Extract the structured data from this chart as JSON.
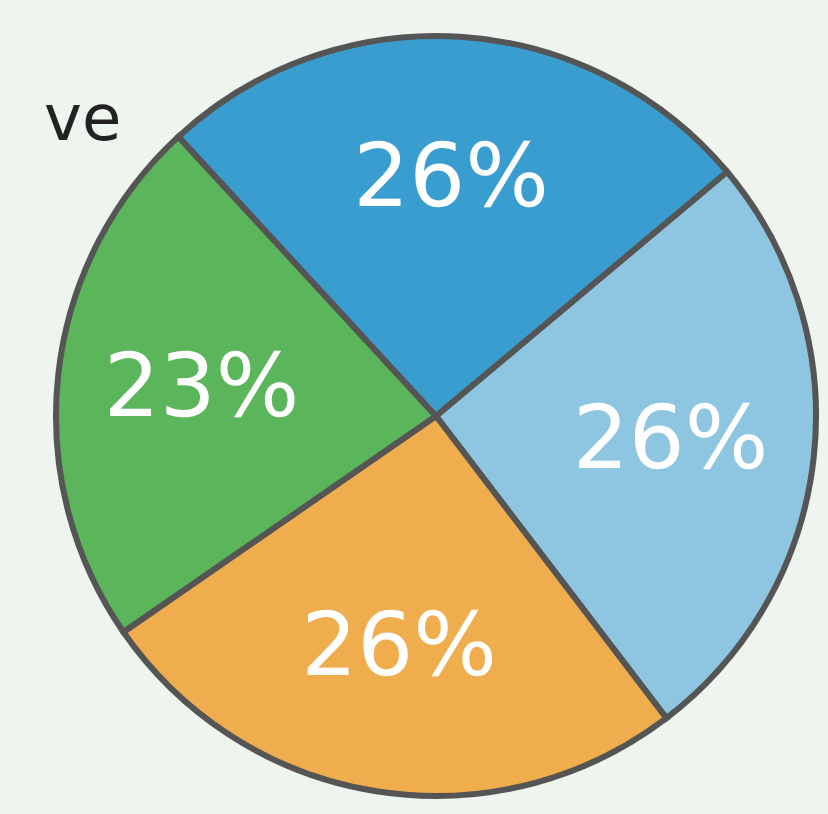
{
  "chart_data": {
    "type": "pie",
    "categories": [
      null,
      null,
      null,
      null
    ],
    "values": [
      26,
      26,
      23,
      26
    ],
    "colors": [
      "#8ec6e2",
      "#f0ad4e",
      "#5bb55b",
      "#3a9dcf"
    ],
    "value_labels": [
      "26%",
      "26%",
      "23%",
      "26%"
    ],
    "annotations": [
      "ve"
    ]
  }
}
